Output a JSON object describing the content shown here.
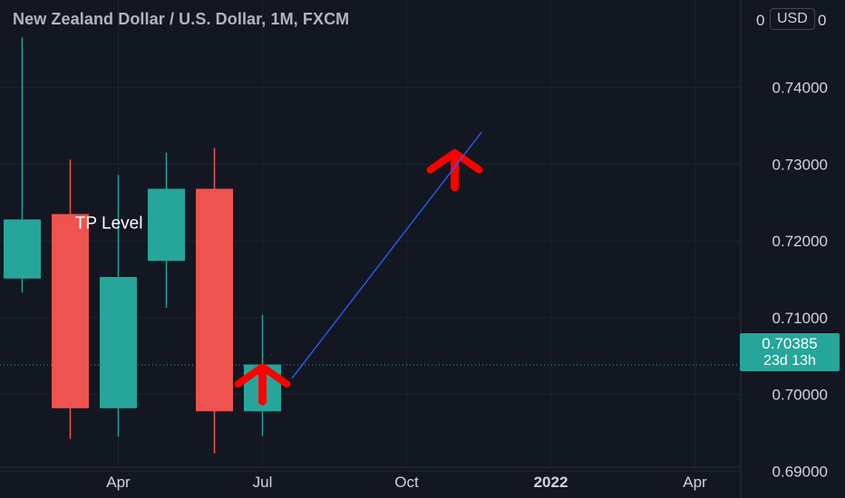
{
  "chart_data": {
    "type": "candlestick",
    "title": "New Zealand Dollar / U.S. Dollar, 1M, FXCM",
    "currency": "USD",
    "y_ticks": [
      "0.69000",
      "0.70000",
      "0.71000",
      "0.72000",
      "0.73000",
      "0.74000"
    ],
    "top_tick_partial": "0",
    "y_range": [
      0.6865,
      0.7514
    ],
    "x_ticks": [
      {
        "label": "Apr",
        "index": 2,
        "bold": false
      },
      {
        "label": "Jul",
        "index": 5,
        "bold": false
      },
      {
        "label": "Oct",
        "index": 8,
        "bold": false
      },
      {
        "label": "2022",
        "index": 11,
        "bold": true
      },
      {
        "label": "Apr",
        "index": 14,
        "bold": false
      }
    ],
    "candles": [
      {
        "open": 0.7151,
        "high": 0.7465,
        "low": 0.7133,
        "close": 0.7228
      },
      {
        "open": 0.7235,
        "high": 0.7306,
        "low": 0.6942,
        "close": 0.6982
      },
      {
        "open": 0.6982,
        "high": 0.7286,
        "low": 0.6945,
        "close": 0.7153
      },
      {
        "open": 0.7174,
        "high": 0.7315,
        "low": 0.7113,
        "close": 0.7268
      },
      {
        "open": 0.7268,
        "high": 0.7321,
        "low": 0.6923,
        "close": 0.6978
      },
      {
        "open": 0.6978,
        "high": 0.7104,
        "low": 0.6946,
        "close": 0.7039
      }
    ],
    "last_price": "0.70385",
    "last_value": 0.70385,
    "countdown": "23d 13h",
    "colors": {
      "up": "#26a69a",
      "down": "#ef5350",
      "background": "#131722",
      "grid": "#1f2330",
      "trendline": "#2962ff",
      "marker": "#ff0000"
    },
    "annotations": [
      {
        "kind": "text",
        "text": "TP Level",
        "index": 1.1,
        "value": 0.7223
      },
      {
        "kind": "up-arrow",
        "index": 5.0,
        "value": 0.7036
      },
      {
        "kind": "up-arrow",
        "index": 9.0,
        "value": 0.7315
      },
      {
        "kind": "trendline",
        "from": {
          "index": 6.0,
          "value": 0.7021
        },
        "to": {
          "index": 9.95,
          "value": 0.7342
        }
      }
    ]
  }
}
